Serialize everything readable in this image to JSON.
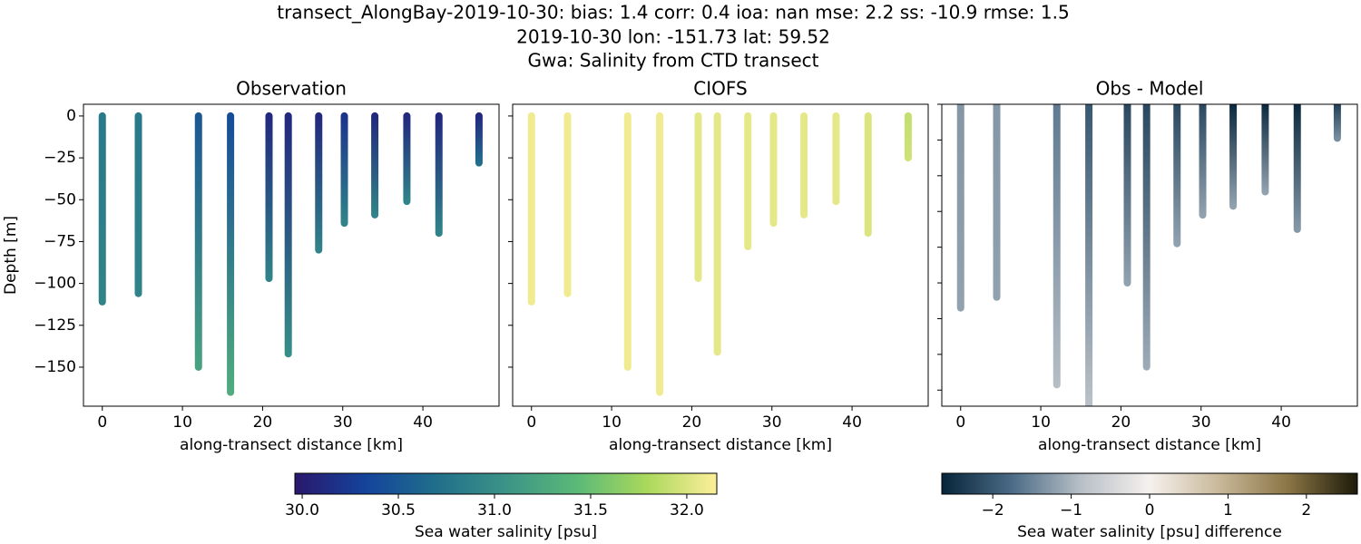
{
  "title_lines": [
    "transect_AlongBay-2019-10-30: bias: 1.4  corr: 0.4  ioa: nan  mse: 2.2  ss: -10.9  rmse: 1.5",
    "2019-10-30 lon: -151.73 lat: 59.52",
    "Gwa: Salinity from CTD transect"
  ],
  "chart_data": [
    {
      "type": "profile",
      "title": "Observation",
      "x_label": "along-transect distance [km]",
      "y_label": "Depth [m]",
      "colorbar": 0,
      "xlim": [
        -2.35,
        49.5
      ],
      "ylim": [
        -173.3,
        7
      ],
      "xticks": [
        0,
        10,
        20,
        30,
        40
      ],
      "yticks": [
        0,
        {
          "value": -25,
          "label": "−25"
        },
        {
          "value": -50,
          "label": "−50"
        },
        {
          "value": -75,
          "label": "−75"
        },
        {
          "value": -100,
          "label": "−100"
        },
        {
          "value": -125,
          "label": "−125"
        },
        {
          "value": -150,
          "label": "−150"
        }
      ],
      "ytick_labels": true,
      "x": [
        0,
        4.5,
        12,
        16,
        20.8,
        23.2,
        27,
        30.2,
        34,
        38,
        42,
        47
      ],
      "bottom_depth": [
        -111,
        -106,
        -150,
        -165,
        -97,
        -142,
        -80,
        -64,
        -59,
        -51,
        -70,
        -28
      ],
      "surface_values": [
        30.8,
        30.8,
        30.5,
        30.4,
        30.1,
        30.1,
        30.1,
        30.2,
        30.1,
        30.1,
        30.1,
        30.1
      ],
      "bottom_values": [
        30.9,
        30.9,
        31.2,
        31.3,
        30.9,
        31.0,
        30.9,
        30.9,
        30.9,
        30.9,
        30.9,
        30.7
      ]
    },
    {
      "type": "profile",
      "title": "CIOFS",
      "x_label": "along-transect distance [km]",
      "colorbar": 0,
      "xlim": [
        -2.35,
        49.5
      ],
      "ylim": [
        -173.3,
        7
      ],
      "xticks": [
        0,
        10,
        20,
        30,
        40
      ],
      "yticks": [
        0,
        -25,
        -50,
        -75,
        -100,
        -125,
        -150
      ],
      "ytick_labels": false,
      "x": [
        0,
        4.5,
        12,
        16,
        20.8,
        23.2,
        27,
        30.2,
        34,
        38,
        42,
        47
      ],
      "bottom_depth": [
        -111,
        -106,
        -150,
        -165,
        -97,
        -141,
        -78,
        -64,
        -59,
        -51,
        -70,
        -25
      ],
      "surface_values": [
        32.1,
        32.1,
        32.1,
        32.1,
        32.05,
        32.05,
        32.05,
        32.05,
        32.05,
        32.05,
        32.0,
        31.9
      ],
      "bottom_values": [
        32.1,
        32.1,
        32.1,
        32.1,
        32.05,
        32.05,
        32.05,
        32.05,
        32.05,
        32.05,
        32.0,
        31.95
      ]
    },
    {
      "type": "profile",
      "title": "Obs - Model",
      "x_label": "along-transect distance [km]",
      "colorbar": 1,
      "xlim": [
        -2.35,
        49.5
      ],
      "ylim": [
        -169,
        0
      ],
      "xticks": [
        0,
        10,
        20,
        30,
        40
      ],
      "yticks": [
        0,
        -20,
        -40,
        -60,
        -80,
        -100,
        -120,
        -140,
        -160
      ],
      "ytick_labels": false,
      "x": [
        0,
        4.5,
        12,
        16,
        20.8,
        23.2,
        27,
        30.2,
        34,
        38,
        42,
        47
      ],
      "bottom_depth": [
        -114,
        -108,
        -157,
        -172,
        -100,
        -147,
        -78,
        -62,
        -57,
        -49,
        -70,
        -19
      ],
      "surface_values": [
        -1.3,
        -1.3,
        -1.6,
        -2.0,
        -2.2,
        -2.2,
        -2.2,
        -2.2,
        -2.6,
        -2.6,
        -2.6,
        -2.3
      ],
      "bottom_values": [
        -1.2,
        -1.2,
        -0.9,
        -0.8,
        -1.2,
        -1.1,
        -1.2,
        -1.2,
        -1.2,
        -1.2,
        -1.3,
        -1.4
      ]
    }
  ],
  "colorbars": [
    {
      "label": "Sea water salinity [psu]",
      "lim": [
        29.962,
        32.156
      ],
      "ticks": [
        {
          "value": 30,
          "label": "30.0"
        },
        30.5,
        {
          "value": 31,
          "label": "31.0"
        },
        31.5,
        {
          "value": 32,
          "label": "32.0"
        }
      ],
      "colors": [
        "#2a186c",
        "#14439c",
        "#206e8b",
        "#3c9387",
        "#5ab978",
        "#aad85c",
        "#fdef9a"
      ]
    },
    {
      "label": "Sea water salinity [psu] difference",
      "lim": [
        -2.65,
        2.65
      ],
      "ticks": [
        {
          "value": -2,
          "label": "−2"
        },
        {
          "value": -1,
          "label": "−1"
        },
        0,
        1,
        2
      ],
      "colors": [
        "#07253a",
        "#4a6a85",
        "#b7bfc6",
        "#f5f1ee",
        "#c9b99a",
        "#8a7545",
        "#1c1a09"
      ]
    }
  ]
}
